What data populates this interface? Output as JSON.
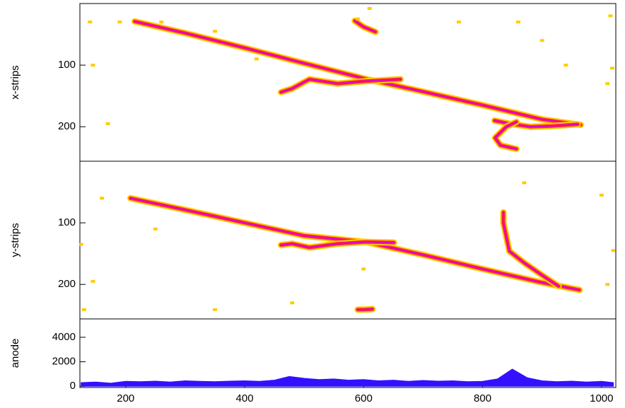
{
  "chart_data": [
    {
      "type": "track",
      "ylabel": "x-strips",
      "xlim": [
        123,
        1024
      ],
      "ylim": [
        256,
        0
      ],
      "yticks": [
        100,
        200
      ],
      "colors": [
        "#ffcc00",
        "#ff2a2a",
        "#e000e0"
      ],
      "tracks": [
        {
          "x": [
            215,
            300,
            400,
            500,
            606,
            700,
            800,
            900,
            965
          ],
          "y": [
            29,
            48,
            72,
            97,
            123,
            143,
            165,
            188,
            197
          ]
        },
        {
          "x": [
            461,
            480,
            509,
            556,
            603,
            662
          ],
          "y": [
            144,
            138,
            123,
            130,
            126,
            123
          ]
        },
        {
          "x": [
            820,
            845,
            880,
            916,
            960
          ],
          "y": [
            190,
            195,
            200,
            199,
            196
          ]
        },
        {
          "x": [
            857,
            840,
            821,
            830,
            857
          ],
          "y": [
            192,
            200,
            218,
            230,
            236
          ]
        },
        {
          "x": [
            585,
            600,
            620
          ],
          "y": [
            28,
            38,
            46
          ]
        }
      ],
      "hits": {
        "x": [
          140,
          190,
          260,
          350,
          420,
          590,
          610,
          760,
          860,
          900,
          940,
          1015,
          1018,
          145,
          170,
          1010
        ],
        "y": [
          30,
          30,
          30,
          45,
          90,
          25,
          8,
          30,
          30,
          60,
          100,
          20,
          105,
          100,
          195,
          130
        ]
      }
    },
    {
      "type": "track",
      "ylabel": "y-strips",
      "xlim": [
        123,
        1024
      ],
      "ylim": [
        256,
        0
      ],
      "yticks": [
        100,
        200
      ],
      "colors": [
        "#ffcc00",
        "#ff2a2a",
        "#e000e0"
      ],
      "tracks": [
        {
          "x": [
            208,
            300,
            400,
            500,
            603,
            700,
            800,
            900,
            963
          ],
          "y": [
            60,
            79,
            100,
            121,
            131,
            152,
            175,
            197,
            209
          ]
        },
        {
          "x": [
            461,
            480,
            509,
            556,
            603,
            651
          ],
          "y": [
            136,
            134,
            140,
            134,
            131,
            132
          ]
        },
        {
          "x": [
            835,
            835,
            845,
            870,
            900,
            928
          ],
          "y": [
            83,
            100,
            146,
            165,
            185,
            203
          ]
        },
        {
          "x": [
            590,
            601,
            615
          ],
          "y": [
            241,
            241,
            240
          ]
        }
      ],
      "hits": {
        "x": [
          125,
          160,
          145,
          250,
          350,
          480,
          600,
          1000,
          1010,
          1020,
          870,
          130
        ],
        "y": [
          135,
          60,
          195,
          110,
          241,
          230,
          175,
          55,
          200,
          145,
          35,
          241
        ]
      }
    },
    {
      "type": "area",
      "ylabel": "anode",
      "xlim": [
        123,
        1024
      ],
      "ylim": [
        -100,
        5500
      ],
      "yticks": [
        0,
        2000,
        4000
      ],
      "xticks": [
        200,
        400,
        600,
        800,
        1000
      ],
      "color": "#3311ff",
      "x": [
        125,
        150,
        175,
        200,
        225,
        250,
        275,
        300,
        325,
        350,
        375,
        400,
        425,
        450,
        475,
        500,
        525,
        550,
        575,
        600,
        625,
        650,
        675,
        700,
        725,
        750,
        775,
        800,
        825,
        850,
        875,
        900,
        925,
        950,
        975,
        1000,
        1020
      ],
      "values": [
        300,
        350,
        250,
        400,
        380,
        420,
        350,
        450,
        400,
        380,
        420,
        450,
        400,
        500,
        800,
        650,
        550,
        600,
        500,
        550,
        450,
        500,
        400,
        480,
        420,
        450,
        380,
        400,
        600,
        1400,
        700,
        450,
        380,
        420,
        350,
        400,
        300
      ]
    }
  ]
}
